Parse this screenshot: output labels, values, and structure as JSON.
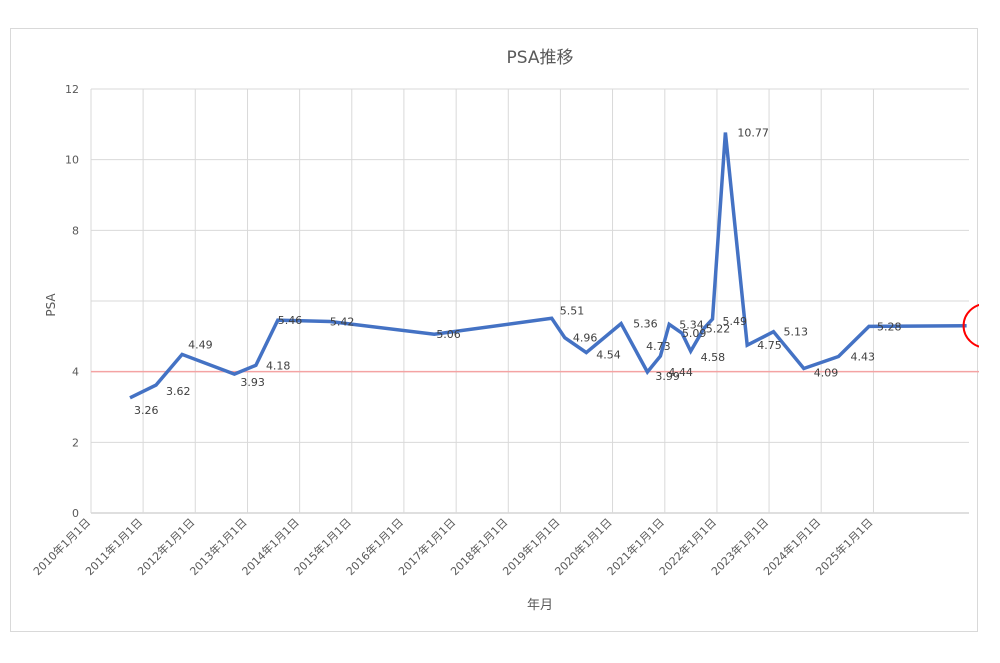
{
  "chart_data": {
    "type": "line",
    "title": "PSA推移",
    "xlabel": "年月",
    "ylabel": "PSA",
    "ylim": [
      0,
      12
    ],
    "ytick_values": [
      0,
      2,
      4,
      6,
      8,
      10,
      12
    ],
    "yticks": [
      "0",
      "2",
      "4",
      "",
      "8",
      "10",
      "12"
    ],
    "xlim": [
      "2010-01-01",
      "2026-11-01"
    ],
    "xticks": [
      {
        "date": "2010-01-01",
        "label": "2010年1月1日"
      },
      {
        "date": "2011-01-01",
        "label": "2011年1月1日"
      },
      {
        "date": "2012-01-01",
        "label": "2012年1月1日"
      },
      {
        "date": "2013-01-01",
        "label": "2013年1月1日"
      },
      {
        "date": "2014-01-01",
        "label": "2014年1月1日"
      },
      {
        "date": "2015-01-01",
        "label": "2015年1月1日"
      },
      {
        "date": "2016-01-01",
        "label": "2016年1月1日"
      },
      {
        "date": "2017-01-01",
        "label": "2017年1月1日"
      },
      {
        "date": "2018-01-01",
        "label": "2018年1月1日"
      },
      {
        "date": "2019-01-01",
        "label": "2019年1月1日"
      },
      {
        "date": "2020-01-01",
        "label": "2020年1月1日"
      },
      {
        "date": "2021-01-01",
        "label": "2021年1月1日"
      },
      {
        "date": "2022-01-01",
        "label": "2022年1月1日"
      },
      {
        "date": "2023-01-01",
        "label": "2023年1月1日"
      },
      {
        "date": "2024-01-01",
        "label": "2024年1月1日"
      },
      {
        "date": "2025-01-01",
        "label": "2025年1月1日"
      }
    ],
    "grid": true,
    "reference_line": {
      "y": 4.0,
      "color": "#f4a3a3"
    },
    "highlight": {
      "date": "2026-10-15",
      "label": "5.3",
      "color": "#ff0000"
    },
    "series": [
      {
        "color": "#4472c4",
        "points": [
          {
            "date": "2010-10-01",
            "y": 3.26,
            "label": "3.26"
          },
          {
            "date": "2011-04-01",
            "y": 3.62,
            "label": "3.62"
          },
          {
            "date": "2011-10-01",
            "y": 4.49,
            "label": "4.49"
          },
          {
            "date": "2012-10-01",
            "y": 3.93,
            "label": "3.93"
          },
          {
            "date": "2013-03-01",
            "y": 4.18,
            "label": "4.18"
          },
          {
            "date": "2013-08-01",
            "y": 5.46,
            "label": "5.46"
          },
          {
            "date": "2014-08-01",
            "y": 5.42,
            "label": "5.42"
          },
          {
            "date": "2016-08-01",
            "y": 5.06,
            "label": "5.06"
          },
          {
            "date": "2018-11-01",
            "y": 5.51,
            "label": "5.51"
          },
          {
            "date": "2019-02-01",
            "y": 4.96,
            "label": "4.96"
          },
          {
            "date": "2019-07-01",
            "y": 4.54,
            "label": "4.54"
          },
          {
            "date": "2020-03-01",
            "y": 5.36,
            "label": "5.36"
          },
          {
            "date": "2020-09-01",
            "y": 3.99,
            "label": "3.99"
          },
          {
            "date": "2020-12-01",
            "y": 4.44,
            "label": "4.44"
          },
          {
            "date": "2021-02-01",
            "y": 5.34,
            "label": "5.34"
          },
          {
            "date": "2021-05-01",
            "y": 5.09,
            "label": "5.09"
          },
          {
            "date": "2021-07-01",
            "y": 4.58,
            "label": "4.58"
          },
          {
            "date": "2021-10-01",
            "y": 5.22,
            "label": "5.22"
          },
          {
            "date": "2021-12-01",
            "y": 5.49,
            "label": "5.49"
          },
          {
            "date": "2022-03-01",
            "y": 10.77,
            "label": "10.77"
          },
          {
            "date": "2022-08-01",
            "y": 4.75,
            "label": "4.75"
          },
          {
            "date": "2023-02-01",
            "y": 5.13,
            "label": "5.13"
          },
          {
            "date": "2023-09-01",
            "y": 4.09,
            "label": "4.09"
          },
          {
            "date": "2024-05-01",
            "y": 4.43,
            "label": "4.43"
          },
          {
            "date": "2024-12-01",
            "y": 5.28,
            "label": "5.28"
          },
          {
            "date": "2026-10-15",
            "y": 5.3,
            "label": "5.3"
          }
        ],
        "point_label_x": [
          1000,
          3000,
          3500,
          5000,
          4000,
          0,
          0,
          3500,
          3100,
          4130
        ]
      }
    ],
    "extra_labels": [
      {
        "date": "2020-11-01",
        "y": 4.73,
        "label": "4.73"
      }
    ]
  }
}
